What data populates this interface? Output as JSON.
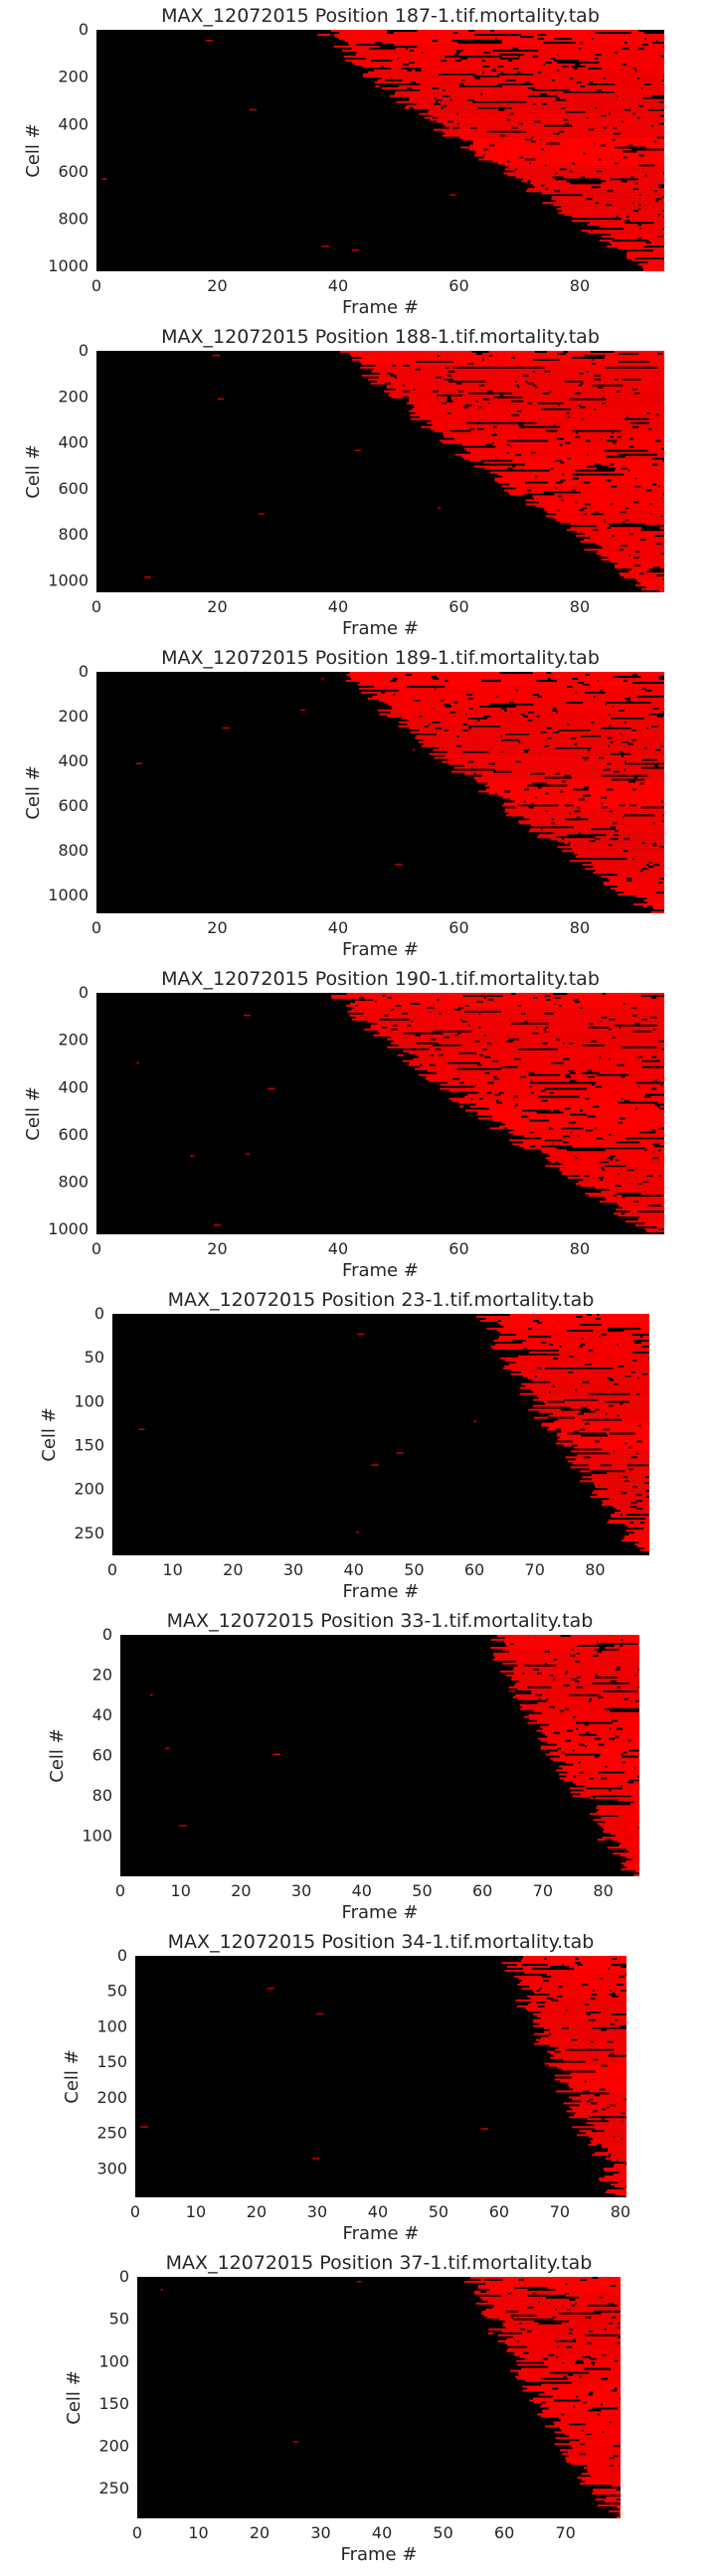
{
  "figure": {
    "background": "#ffffff",
    "heatmap_background": "#000000",
    "heatmap_active": "#ff0000"
  },
  "chart_data": [
    {
      "type": "heatmap",
      "title": "MAX_12072015 Position 187-1.tif.mortality.tab",
      "xlabel": "Frame #",
      "ylabel": "Cell #",
      "xlim": [
        0,
        94
      ],
      "ylim": [
        1020,
        0
      ],
      "xticks": [
        0,
        20,
        40,
        60,
        80
      ],
      "yticks": [
        0,
        200,
        400,
        600,
        800,
        1000
      ],
      "death_frame_range": [
        38,
        93
      ],
      "grid": false,
      "legend": "none"
    },
    {
      "type": "heatmap",
      "title": "MAX_12072015 Position 188-1.tif.mortality.tab",
      "xlabel": "Frame #",
      "ylabel": "Cell #",
      "xlim": [
        0,
        94
      ],
      "ylim": [
        1050,
        0
      ],
      "xticks": [
        0,
        20,
        40,
        60,
        80
      ],
      "yticks": [
        0,
        200,
        400,
        600,
        800,
        1000
      ],
      "death_frame_range": [
        42,
        93
      ],
      "grid": false,
      "legend": "none"
    },
    {
      "type": "heatmap",
      "title": "MAX_12072015 Position 189-1.tif.mortality.tab",
      "xlabel": "Frame #",
      "ylabel": "Cell #",
      "xlim": [
        0,
        94
      ],
      "ylim": [
        1080,
        0
      ],
      "xticks": [
        0,
        20,
        40,
        60,
        80
      ],
      "yticks": [
        0,
        200,
        400,
        600,
        800,
        1000
      ],
      "death_frame_range": [
        42,
        93
      ],
      "grid": false,
      "legend": "none"
    },
    {
      "type": "heatmap",
      "title": "MAX_12072015 Position 190-1.tif.mortality.tab",
      "xlabel": "Frame #",
      "ylabel": "Cell #",
      "xlim": [
        0,
        94
      ],
      "ylim": [
        1020,
        0
      ],
      "xticks": [
        0,
        20,
        40,
        60,
        80
      ],
      "yticks": [
        0,
        200,
        400,
        600,
        800,
        1000
      ],
      "death_frame_range": [
        40,
        93
      ],
      "grid": false,
      "legend": "none"
    },
    {
      "type": "heatmap",
      "title": "MAX_12072015 Position 23-1.tif.mortality.tab",
      "xlabel": "Frame #",
      "ylabel": "Cell #",
      "xlim": [
        0,
        89
      ],
      "ylim": [
        275,
        0
      ],
      "xticks": [
        0,
        10,
        20,
        30,
        40,
        50,
        60,
        70,
        80
      ],
      "yticks": [
        0,
        50,
        100,
        150,
        200,
        250
      ],
      "death_frame_range": [
        62,
        88
      ],
      "grid": false,
      "legend": "none"
    },
    {
      "type": "heatmap",
      "title": "MAX_12072015 Position 33-1.tif.mortality.tab",
      "xlabel": "Frame #",
      "ylabel": "Cell #",
      "xlim": [
        0,
        86
      ],
      "ylim": [
        120,
        0
      ],
      "xticks": [
        0,
        10,
        20,
        30,
        40,
        50,
        60,
        70,
        80
      ],
      "yticks": [
        0,
        20,
        40,
        60,
        80,
        100
      ],
      "death_frame_range": [
        62,
        85
      ],
      "grid": false,
      "legend": "none"
    },
    {
      "type": "heatmap",
      "title": "MAX_12072015 Position 34-1.tif.mortality.tab",
      "xlabel": "Frame #",
      "ylabel": "Cell #",
      "xlim": [
        0,
        81
      ],
      "ylim": [
        340,
        0
      ],
      "xticks": [
        0,
        10,
        20,
        30,
        40,
        50,
        60,
        70,
        80
      ],
      "yticks": [
        0,
        50,
        100,
        150,
        200,
        250,
        300
      ],
      "death_frame_range": [
        62,
        80
      ],
      "grid": false,
      "legend": "none"
    },
    {
      "type": "heatmap",
      "title": "MAX_12072015 Position 37-1.tif.mortality.tab",
      "xlabel": "Frame #",
      "ylabel": "Cell #",
      "xlim": [
        0,
        79
      ],
      "ylim": [
        285,
        0
      ],
      "xticks": [
        0,
        10,
        20,
        30,
        40,
        50,
        60,
        70
      ],
      "yticks": [
        0,
        50,
        100,
        150,
        200,
        250
      ],
      "death_frame_range": [
        55,
        78
      ],
      "grid": false,
      "legend": "none"
    }
  ]
}
